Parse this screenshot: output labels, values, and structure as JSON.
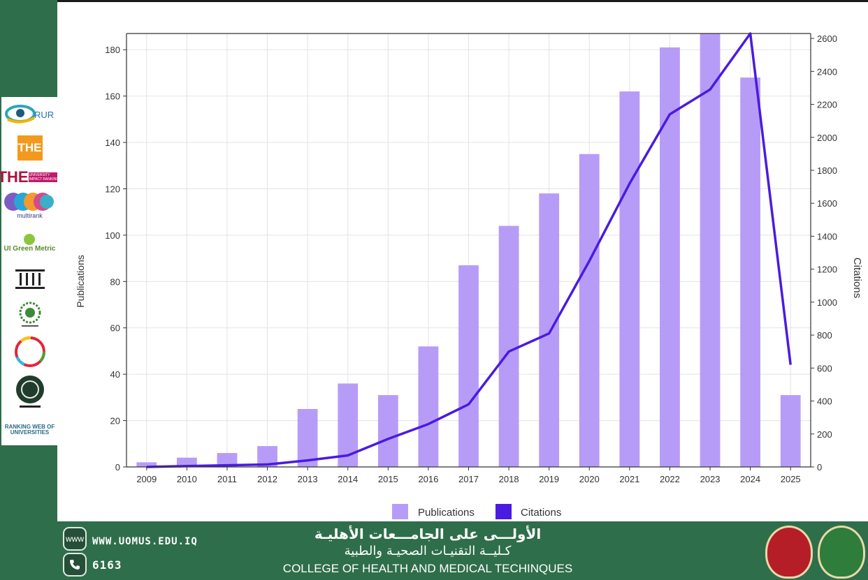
{
  "sidebar": {
    "logos": [
      {
        "name": "rur-logo",
        "text": "RUR"
      },
      {
        "name": "the-logo",
        "text": "THE"
      },
      {
        "name": "the-impact-logo",
        "text": "THE",
        "sub": "UNIVERSITY IMPACT RANKINGS"
      },
      {
        "name": "multirank-logo",
        "text": "multirank"
      },
      {
        "name": "ui-greenmetric-logo",
        "text": "UI Green Metric"
      },
      {
        "name": "columns-logo",
        "text": ""
      },
      {
        "name": "arab-union-logo",
        "text": ""
      },
      {
        "name": "sdg-logo",
        "text": ""
      },
      {
        "name": "arab-engineers-logo",
        "text": ""
      },
      {
        "name": "webometrics-logo",
        "text": "RANKING WEB OF UNIVERSITIES"
      }
    ]
  },
  "chart_data": {
    "type": "bar",
    "categories": [
      "2009",
      "2010",
      "2011",
      "2012",
      "2013",
      "2014",
      "2015",
      "2016",
      "2017",
      "2018",
      "2019",
      "2020",
      "2021",
      "2022",
      "2023",
      "2024",
      "2025"
    ],
    "series": [
      {
        "name": "Publications",
        "type": "bar",
        "axis": "left",
        "color": "#b79cf7",
        "values": [
          2,
          4,
          6,
          9,
          25,
          36,
          31,
          52,
          87,
          104,
          118,
          135,
          162,
          181,
          187,
          168,
          31
        ]
      },
      {
        "name": "Citations",
        "type": "line",
        "axis": "right",
        "color": "#4a1be0",
        "values": [
          0,
          5,
          10,
          15,
          40,
          70,
          170,
          260,
          380,
          700,
          810,
          1250,
          1720,
          2140,
          2290,
          2630,
          620
        ]
      }
    ],
    "ylabel": "Publications",
    "y2label": "Citations",
    "ylim": [
      0,
      187
    ],
    "y2lim": [
      0,
      2630
    ],
    "yticks": [
      0,
      20,
      40,
      60,
      80,
      100,
      120,
      140,
      160,
      180
    ],
    "y2ticks": [
      0,
      200,
      400,
      600,
      800,
      1000,
      1200,
      1400,
      1600,
      1800,
      2000,
      2200,
      2400,
      2600
    ],
    "legend_position": "bottom",
    "grid": true
  },
  "footer": {
    "website": "WWW.UOMUS.EDU.IQ",
    "web_icon_label": "www",
    "phone": "6163",
    "arabic_line1": "الأولـــى على الجامـــعات الأهليـة",
    "arabic_line2": "كـليــة التقنيـات الصحيـة والطبية",
    "college_name": "COLLEGE OF HEALTH AND MEDICAL  TECHINQUES"
  }
}
